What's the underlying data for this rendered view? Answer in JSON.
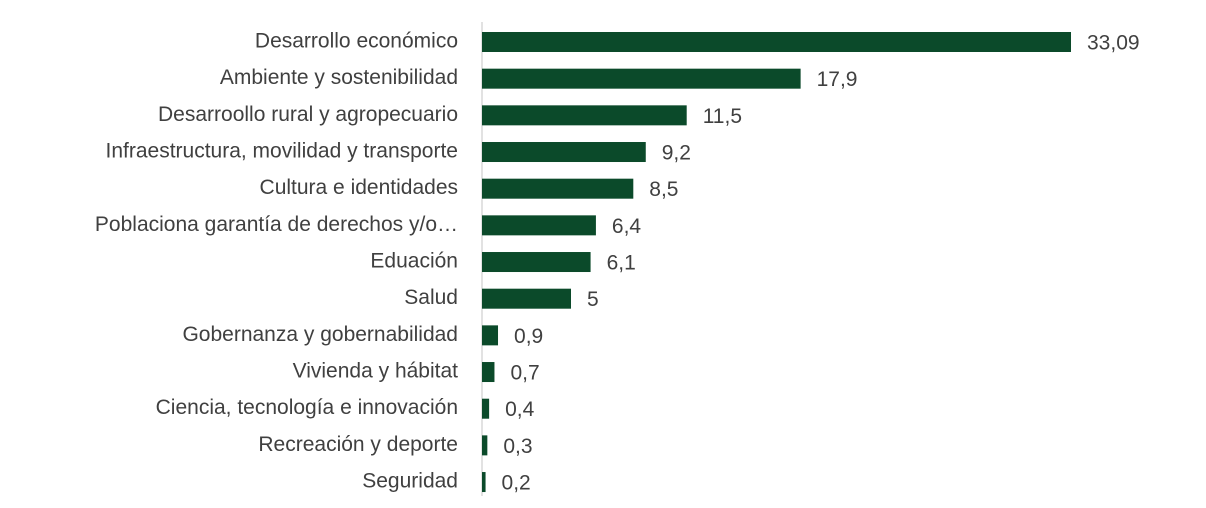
{
  "chart_data": {
    "type": "hbar",
    "categories": [
      "Desarrollo económico",
      "Ambiente y sostenibilidad",
      "Desarroollo rural y agropecuario",
      "Infraestructura, movilidad y transporte",
      "Cultura e identidades",
      "Poblaciona garantía de derechos y/o…",
      "Eduación",
      "Salud",
      "Gobernanza y gobernabilidad",
      "Vivienda y hábitat",
      "Ciencia, tecnología e innovación",
      "Recreación y deporte",
      "Seguridad"
    ],
    "values": [
      33.09,
      17.9,
      11.5,
      9.2,
      8.5,
      6.4,
      6.1,
      5,
      0.9,
      0.7,
      0.4,
      0.3,
      0.2
    ],
    "value_labels": [
      "33,09",
      "17,9",
      "11,5",
      "9,2",
      "8,5",
      "6,4",
      "6,1",
      "5",
      "0,9",
      "0,7",
      "0,4",
      "0,3",
      "0,2"
    ],
    "color": "#0b4a2a",
    "xlim": [
      0,
      35
    ]
  }
}
